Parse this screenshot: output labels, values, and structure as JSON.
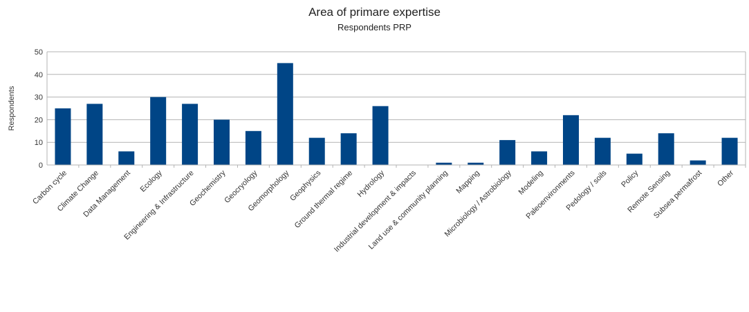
{
  "chart_data": {
    "type": "bar",
    "title": "Area of primare expertise",
    "subtitle": "Respondents PRP",
    "xlabel": "",
    "ylabel": "Respondents",
    "ylim": [
      0,
      50
    ],
    "yticks": [
      0,
      10,
      20,
      30,
      40,
      50
    ],
    "grid": true,
    "legend": "none",
    "bar_color": "#004586",
    "categories": [
      "Carbon cycle",
      "Climate Change",
      "Data Management",
      "Ecology",
      "Engineering & Infrastructure",
      "Geochemistry",
      "Geocryology",
      "Geomorphology",
      "Geophysics",
      "Ground thermal regime",
      "Hydrology",
      "Industrial development & impacts",
      "Land use & community planning",
      "Mapping",
      "Microbiology / Astrobiology",
      "Modeling",
      "Paleoenvironments",
      "Pedology / soils",
      "Policy",
      "Remote Sensing",
      "Subsea permafrost",
      "Other"
    ],
    "values": [
      25,
      27,
      6,
      30,
      27,
      20,
      15,
      45,
      12,
      14,
      26,
      0,
      1,
      1,
      11,
      6,
      22,
      12,
      5,
      14,
      2,
      12
    ]
  }
}
